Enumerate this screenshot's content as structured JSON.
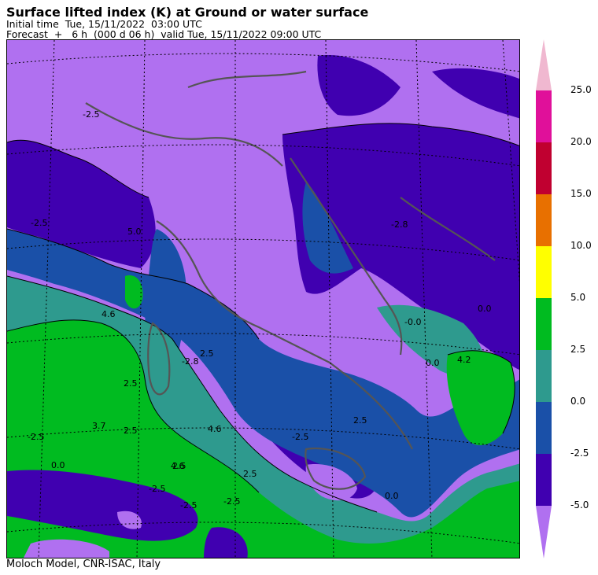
{
  "header": {
    "title": "Surface lifted index (K) at Ground or water surface",
    "initial_time": "Initial time  Tue, 15/11/2022  03:00 UTC",
    "forecast": "Forecast  +   6 h  (000 d 06 h)  valid Tue, 15/11/2022 09:00 UTC"
  },
  "footer": {
    "credit": "Moloch Model, CNR-ISAC, Italy"
  },
  "colorbar": {
    "labels": [
      "25.0",
      "20.0",
      "15.0",
      "10.0",
      "5.0",
      "2.5",
      "0.0",
      "-2.5",
      "-5.0"
    ],
    "bands": [
      {
        "from": 20.0,
        "to": 25.0,
        "color": "#e0109a"
      },
      {
        "from": 15.0,
        "to": 20.0,
        "color": "#c00030"
      },
      {
        "from": 10.0,
        "to": 15.0,
        "color": "#e87000"
      },
      {
        "from": 5.0,
        "to": 10.0,
        "color": "#ffff00"
      },
      {
        "from": 2.5,
        "to": 5.0,
        "color": "#00bb20"
      },
      {
        "from": 0.0,
        "to": 2.5,
        "color": "#2e9a8e"
      },
      {
        "from": -2.5,
        "to": 0.0,
        "color": "#1a50a8"
      },
      {
        "from": -5.0,
        "to": -2.5,
        "color": "#4000b0"
      }
    ],
    "over_color": "#f0b8d0",
    "under_color": "#b070f0"
  },
  "map": {
    "colors": {
      "below_minus5": "#b070f0",
      "minus5_to_minus2_5": "#4000b0",
      "minus2_5_to_0": "#1a50a8",
      "zero_to_2_5": "#2e9a8e",
      "2_5_to_5": "#00bb20",
      "coast": "#555555"
    },
    "contour_labels": [
      "5.0",
      "-2.5",
      "4.6",
      "-2.8",
      "-2.5",
      "-0.0",
      "4.6",
      "2.5",
      "3.7",
      "-2.5",
      "2.5",
      "0.0",
      "-2.5",
      "-2.5",
      "4.6",
      "2.5",
      "2.5",
      "4.2",
      "0.0",
      "0.0",
      "2.5",
      "-2.5",
      "2.5",
      "0.0",
      "-2.5",
      "-2.8"
    ]
  }
}
